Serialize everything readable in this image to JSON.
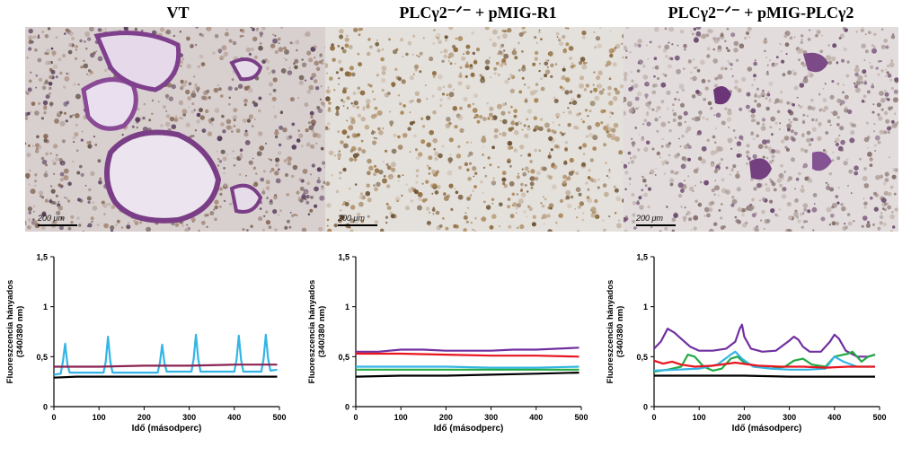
{
  "panels": [
    {
      "title": "VT",
      "scale_label": "200 μm"
    },
    {
      "title": "PLCγ2⁻ᐟ⁻ + pMIG-R1",
      "scale_label": "200 μm"
    },
    {
      "title": "PLCγ2⁻ᐟ⁻ + pMIG-PLCγ2",
      "scale_label": "200 μm"
    }
  ],
  "colors": {
    "cyan": "#33b5e5",
    "maroon": "#8b2252",
    "black": "#000000",
    "purple": "#7030a0",
    "red": "#e8141e",
    "green": "#22aa44"
  },
  "chart_data": [
    {
      "type": "line",
      "xlabel": "Idő (másodperc)",
      "ylabel": "Fluoreszcencia hányados (340/380 nm)",
      "xlim": [
        0,
        500
      ],
      "ylim": [
        0,
        1.5
      ],
      "xticks": [
        "0",
        "100",
        "200",
        "300",
        "400",
        "500"
      ],
      "yticks": [
        "0",
        "0,5",
        "1",
        "1,5"
      ],
      "series": [
        {
          "color": "cyan",
          "x": [
            0,
            15,
            20,
            25,
            30,
            35,
            110,
            115,
            120,
            125,
            130,
            230,
            235,
            240,
            245,
            250,
            305,
            310,
            315,
            320,
            325,
            400,
            405,
            410,
            415,
            420,
            460,
            465,
            470,
            475,
            480,
            495
          ],
          "values": [
            0.32,
            0.33,
            0.45,
            0.63,
            0.42,
            0.34,
            0.34,
            0.45,
            0.7,
            0.45,
            0.34,
            0.34,
            0.44,
            0.62,
            0.44,
            0.35,
            0.35,
            0.48,
            0.72,
            0.48,
            0.35,
            0.35,
            0.47,
            0.71,
            0.47,
            0.35,
            0.35,
            0.48,
            0.72,
            0.48,
            0.36,
            0.37
          ]
        },
        {
          "color": "maroon",
          "x": [
            0,
            100,
            200,
            300,
            400,
            495
          ],
          "values": [
            0.4,
            0.4,
            0.41,
            0.41,
            0.42,
            0.42
          ]
        },
        {
          "color": "black",
          "x": [
            0,
            50,
            100,
            200,
            300,
            400,
            495
          ],
          "values": [
            0.29,
            0.3,
            0.3,
            0.3,
            0.3,
            0.3,
            0.3
          ]
        }
      ]
    },
    {
      "type": "line",
      "xlabel": "Idő (másodperc)",
      "ylabel": "Fluoreszcencia hányados (340/380 nm)",
      "xlim": [
        0,
        500
      ],
      "ylim": [
        0,
        1.5
      ],
      "xticks": [
        "0",
        "100",
        "200",
        "300",
        "400",
        "500"
      ],
      "yticks": [
        "0",
        "0,5",
        "1",
        "1,5"
      ],
      "series": [
        {
          "color": "purple",
          "x": [
            0,
            50,
            100,
            150,
            200,
            250,
            300,
            350,
            400,
            450,
            495
          ],
          "values": [
            0.55,
            0.55,
            0.57,
            0.57,
            0.56,
            0.56,
            0.56,
            0.57,
            0.57,
            0.58,
            0.59
          ]
        },
        {
          "color": "red",
          "x": [
            0,
            100,
            200,
            300,
            400,
            495
          ],
          "values": [
            0.53,
            0.53,
            0.52,
            0.51,
            0.51,
            0.5
          ]
        },
        {
          "color": "cyan",
          "x": [
            0,
            100,
            200,
            300,
            400,
            495
          ],
          "values": [
            0.4,
            0.4,
            0.4,
            0.39,
            0.39,
            0.4
          ]
        },
        {
          "color": "green",
          "x": [
            0,
            100,
            200,
            300,
            400,
            495
          ],
          "values": [
            0.37,
            0.37,
            0.37,
            0.37,
            0.37,
            0.37
          ]
        },
        {
          "color": "black",
          "x": [
            0,
            100,
            200,
            300,
            400,
            495
          ],
          "values": [
            0.3,
            0.31,
            0.31,
            0.32,
            0.33,
            0.34
          ]
        }
      ]
    },
    {
      "type": "line",
      "xlabel": "Idő (másodperc)",
      "ylabel": "Fluoreszcencia hányados (340/380 nm)",
      "xlim": [
        0,
        500
      ],
      "ylim": [
        0,
        1.5
      ],
      "xticks": [
        "0",
        "100",
        "200",
        "300",
        "400",
        "500"
      ],
      "yticks": [
        "0",
        "0,5",
        "1",
        "1,5"
      ],
      "series": [
        {
          "color": "purple",
          "x": [
            0,
            15,
            30,
            45,
            60,
            80,
            100,
            130,
            160,
            180,
            190,
            195,
            200,
            215,
            240,
            270,
            300,
            310,
            320,
            330,
            345,
            370,
            390,
            400,
            410,
            425,
            450,
            475,
            490
          ],
          "values": [
            0.58,
            0.65,
            0.78,
            0.74,
            0.68,
            0.6,
            0.56,
            0.56,
            0.58,
            0.65,
            0.78,
            0.82,
            0.7,
            0.58,
            0.55,
            0.56,
            0.66,
            0.7,
            0.67,
            0.6,
            0.55,
            0.55,
            0.65,
            0.72,
            0.68,
            0.56,
            0.5,
            0.5,
            0.52
          ]
        },
        {
          "color": "green",
          "x": [
            0,
            30,
            60,
            75,
            90,
            110,
            130,
            150,
            170,
            185,
            200,
            230,
            260,
            290,
            310,
            330,
            350,
            380,
            400,
            430,
            440,
            460,
            475,
            490
          ],
          "values": [
            0.35,
            0.37,
            0.4,
            0.52,
            0.5,
            0.4,
            0.36,
            0.38,
            0.48,
            0.5,
            0.44,
            0.4,
            0.38,
            0.4,
            0.46,
            0.48,
            0.42,
            0.4,
            0.5,
            0.53,
            0.55,
            0.45,
            0.5,
            0.52
          ]
        },
        {
          "color": "cyan",
          "x": [
            0,
            50,
            100,
            140,
            170,
            180,
            195,
            220,
            260,
            300,
            340,
            380,
            400,
            420,
            450,
            490
          ],
          "values": [
            0.36,
            0.37,
            0.38,
            0.42,
            0.52,
            0.55,
            0.48,
            0.4,
            0.38,
            0.37,
            0.37,
            0.38,
            0.5,
            0.45,
            0.4,
            0.4
          ]
        },
        {
          "color": "red",
          "x": [
            0,
            20,
            40,
            60,
            90,
            130,
            180,
            230,
            280,
            330,
            380,
            430,
            490
          ],
          "values": [
            0.46,
            0.43,
            0.45,
            0.42,
            0.4,
            0.41,
            0.44,
            0.41,
            0.4,
            0.4,
            0.39,
            0.4,
            0.4
          ]
        },
        {
          "color": "black",
          "x": [
            0,
            100,
            200,
            300,
            400,
            490
          ],
          "values": [
            0.31,
            0.31,
            0.31,
            0.3,
            0.3,
            0.3
          ]
        }
      ]
    }
  ]
}
